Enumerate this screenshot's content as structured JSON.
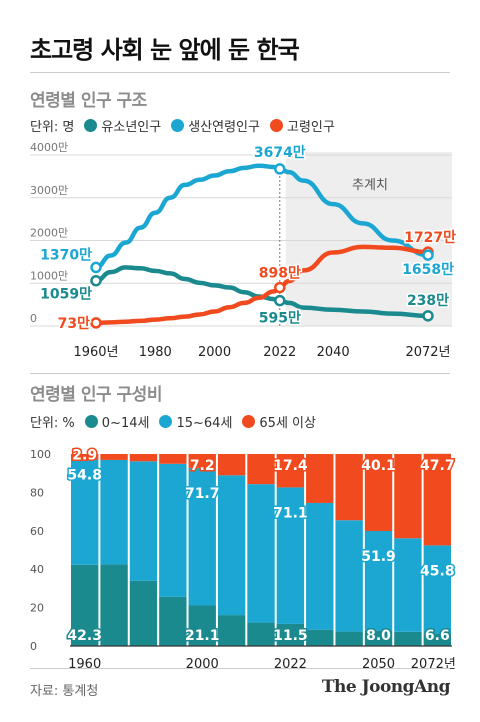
{
  "title": "초고령 사회 눈 앞에 둔 한국",
  "colors": {
    "youth": "#1a8a8e",
    "working": "#1ba7d2",
    "elderly": "#f04a1e",
    "proj_bg": "#eeeeee"
  },
  "chart_data": [
    {
      "type": "line",
      "title": "연령별 인구 구조",
      "unit_label": "단위: 명",
      "yticks": [
        "4000만",
        "3000만",
        "2000만",
        "1000만",
        "0"
      ],
      "ylim": [
        0,
        4000
      ],
      "xlim": [
        1960,
        2072
      ],
      "xticks": [
        "1960년",
        "1980",
        "2000",
        "2022",
        "2040",
        "2072년"
      ],
      "projection_label": "추계치",
      "projection_start": 2022,
      "series": [
        {
          "name": "유소년인구",
          "x": [
            1960,
            1965,
            1970,
            1975,
            1980,
            1985,
            1990,
            1995,
            2000,
            2005,
            2010,
            2015,
            2020,
            2022,
            2025,
            2030,
            2040,
            2050,
            2060,
            2072
          ],
          "y": [
            1059,
            1260,
            1370,
            1350,
            1290,
            1230,
            1100,
            1010,
            950,
            900,
            790,
            690,
            630,
            595,
            540,
            430,
            380,
            340,
            290,
            238
          ]
        },
        {
          "name": "생산연령인구",
          "x": [
            1960,
            1965,
            1970,
            1975,
            1980,
            1985,
            1990,
            1995,
            2000,
            2005,
            2010,
            2015,
            2020,
            2022,
            2025,
            2030,
            2040,
            2050,
            2060,
            2072
          ],
          "y": [
            1370,
            1650,
            1950,
            2300,
            2650,
            3000,
            3300,
            3420,
            3520,
            3620,
            3700,
            3750,
            3720,
            3674,
            3600,
            3400,
            2850,
            2400,
            2000,
            1658
          ]
        },
        {
          "name": "고령인구",
          "x": [
            1960,
            1965,
            1970,
            1975,
            1980,
            1985,
            1990,
            1995,
            2000,
            2005,
            2010,
            2015,
            2020,
            2022,
            2025,
            2030,
            2040,
            2050,
            2060,
            2072
          ],
          "y": [
            73,
            85,
            100,
            120,
            150,
            180,
            220,
            270,
            340,
            440,
            540,
            660,
            810,
            898,
            1050,
            1300,
            1720,
            1850,
            1830,
            1727
          ]
        }
      ],
      "annotations": [
        {
          "text": "1370만",
          "series": 1,
          "x": 1960,
          "y": 1370
        },
        {
          "text": "1059만",
          "series": 0,
          "x": 1960,
          "y": 1059
        },
        {
          "text": "73만",
          "series": 2,
          "x": 1960,
          "y": 73
        },
        {
          "text": "3674만",
          "series": 1,
          "x": 2022,
          "y": 3674
        },
        {
          "text": "898만",
          "series": 2,
          "x": 2022,
          "y": 898
        },
        {
          "text": "595만",
          "series": 0,
          "x": 2022,
          "y": 595
        },
        {
          "text": "1727만",
          "series": 2,
          "x": 2072,
          "y": 1727
        },
        {
          "text": "1658만",
          "series": 1,
          "x": 2072,
          "y": 1658
        },
        {
          "text": "238만",
          "series": 0,
          "x": 2072,
          "y": 238
        }
      ]
    },
    {
      "type": "bar",
      "stacked": true,
      "title": "연령별 인구 구성비",
      "unit_label": "단위: %",
      "ylim": [
        0,
        100
      ],
      "yticks": [
        "100",
        "80",
        "60",
        "40",
        "20",
        "0"
      ],
      "xticks": [
        "1960",
        "2000",
        "2022",
        "2050",
        "2072년"
      ],
      "categories": [
        "1960",
        "1970",
        "1980",
        "1990",
        "2000",
        "2010",
        "2020",
        "2022",
        "2030",
        "2040",
        "2050",
        "2060",
        "2072"
      ],
      "series": [
        {
          "name": "0~14세",
          "values": [
            42.3,
            42.5,
            34.0,
            25.6,
            21.1,
            16.1,
            12.2,
            11.5,
            8.5,
            7.5,
            8.0,
            7.4,
            6.6
          ]
        },
        {
          "name": "15~64세",
          "values": [
            54.8,
            54.4,
            62.2,
            69.3,
            71.7,
            72.8,
            72.1,
            71.1,
            66.0,
            58.0,
            51.9,
            48.7,
            45.8
          ]
        },
        {
          "name": "65세 이상",
          "values": [
            2.9,
            3.1,
            3.8,
            5.1,
            7.2,
            11.1,
            15.7,
            17.4,
            25.5,
            34.5,
            40.1,
            43.9,
            47.7
          ]
        }
      ],
      "data_labels": [
        {
          "text": "2.9",
          "category": 0,
          "series": 2
        },
        {
          "text": "54.8",
          "category": 0,
          "series": 1
        },
        {
          "text": "42.3",
          "category": 0,
          "series": 0
        },
        {
          "text": "7.2",
          "category": 4,
          "series": 2
        },
        {
          "text": "71.7",
          "category": 4,
          "series": 1
        },
        {
          "text": "21.1",
          "category": 4,
          "series": 0
        },
        {
          "text": "17.4",
          "category": 7,
          "series": 2
        },
        {
          "text": "71.1",
          "category": 7,
          "series": 1
        },
        {
          "text": "11.5",
          "category": 7,
          "series": 0
        },
        {
          "text": "40.1",
          "category": 10,
          "series": 2
        },
        {
          "text": "51.9",
          "category": 10,
          "series": 1
        },
        {
          "text": "8.0",
          "category": 10,
          "series": 0
        },
        {
          "text": "47.7",
          "category": 12,
          "series": 2
        },
        {
          "text": "45.8",
          "category": 12,
          "series": 1
        },
        {
          "text": "6.6",
          "category": 12,
          "series": 0
        }
      ]
    }
  ],
  "footer": {
    "source": "자료: 통계청",
    "brand": "The JoongAng"
  }
}
